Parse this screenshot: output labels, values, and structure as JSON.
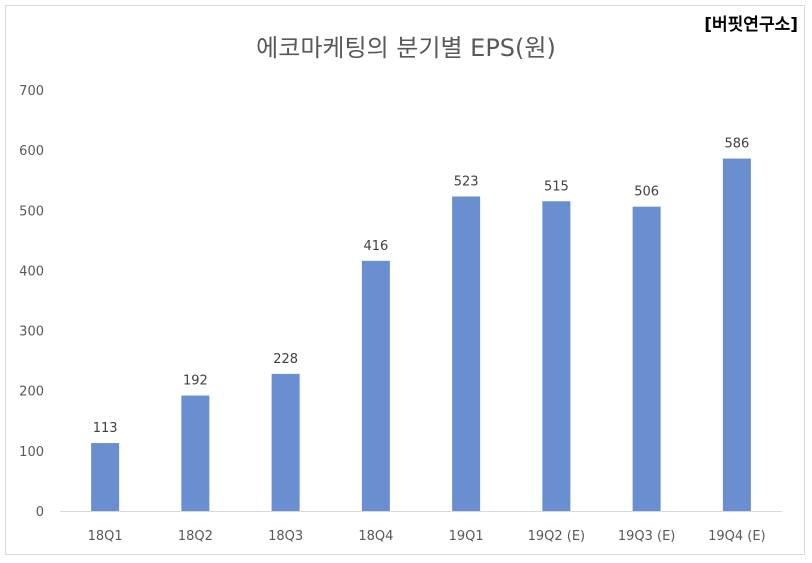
{
  "watermark": "[버핏연구소]",
  "chart_data": {
    "type": "bar",
    "title": "에코마케팅의 분기별 EPS(원)",
    "categories": [
      "18Q1",
      "18Q2",
      "18Q3",
      "18Q4",
      "19Q1",
      "19Q2 (E)",
      "19Q3 (E)",
      "19Q4 (E)"
    ],
    "values": [
      113,
      192,
      228,
      416,
      523,
      515,
      506,
      586
    ],
    "yticks": [
      0,
      100,
      200,
      300,
      400,
      500,
      600,
      700
    ],
    "ylim": [
      0,
      700
    ],
    "grid": false,
    "bar_color": "#6a8fd0"
  }
}
